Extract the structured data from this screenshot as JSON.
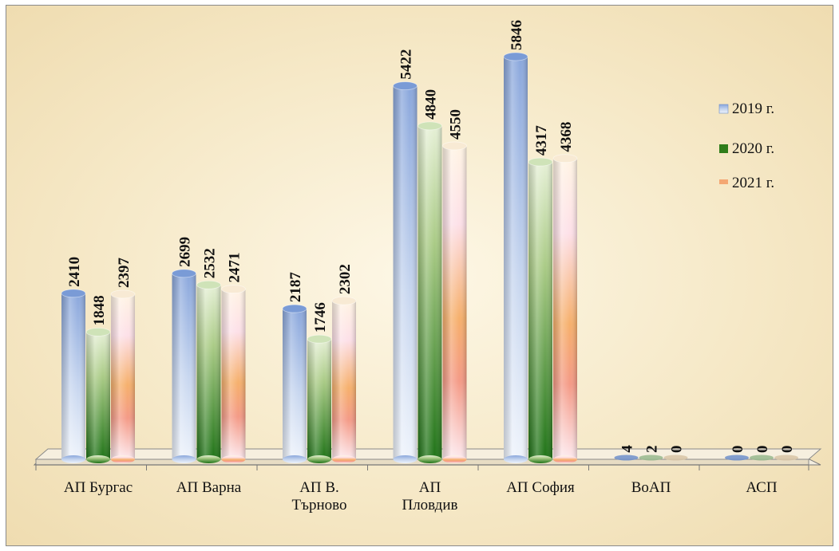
{
  "chart_data": {
    "type": "bar",
    "categories": [
      [
        "АП Бургас"
      ],
      [
        "АП Варна"
      ],
      [
        "АП В.",
        "Търново"
      ],
      [
        "АП",
        "Пловдив"
      ],
      [
        "АП София"
      ],
      [
        "ВоАП"
      ],
      [
        "АСП"
      ]
    ],
    "series": [
      {
        "name": "2019 г.",
        "values": [
          2410,
          2699,
          2187,
          5422,
          5846,
          4,
          0
        ]
      },
      {
        "name": "2020 г.",
        "values": [
          1848,
          2532,
          1746,
          4840,
          4317,
          2,
          0
        ]
      },
      {
        "name": "2021 г.",
        "values": [
          2397,
          2471,
          2302,
          4550,
          4368,
          0,
          0
        ]
      }
    ],
    "ylim": [
      0,
      6000
    ],
    "grid": false,
    "legend_position": "right",
    "colors": {
      "2019 г.": "#7f9fd8",
      "2020 г.": "#2f7d1a",
      "2021 г.": "#f4a773"
    }
  }
}
